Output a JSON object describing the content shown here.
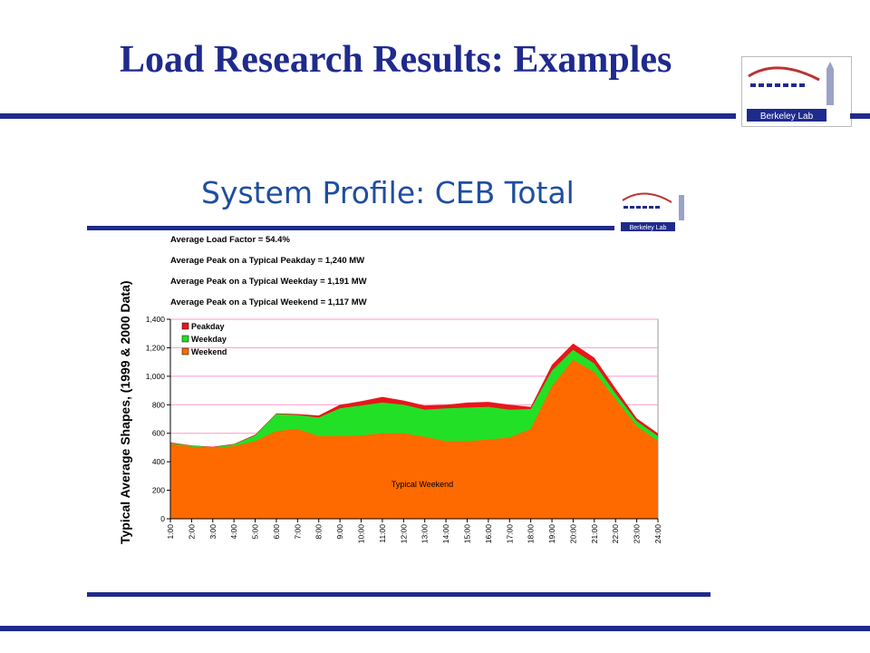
{
  "slide": {
    "title": "Load Research Results: Examples",
    "logo_text": "Berkeley Lab"
  },
  "chart_header": {
    "title": "System Profile: CEB Total"
  },
  "stats": [
    "Average Load Factor = 54.4%",
    "Average Peak on a Typical Peakday =  1,240 MW",
    "Average Peak on a Typical Weekday = 1,191 MW",
    "Average Peak on a Typical Weekend = 1,117 MW"
  ],
  "colors": {
    "brand": "#1f2a8c",
    "peakday": "#e8161b",
    "weekday": "#22e026",
    "weekend": "#ff6a00",
    "gridline": "#ff99cc"
  },
  "chart_data": {
    "type": "area",
    "ylabel": "Typical Average Shapes, (1999 & 2000 Data)",
    "xlabel": "",
    "ylim": [
      0,
      1400
    ],
    "yticks": [
      0,
      200,
      400,
      600,
      800,
      1000,
      1200,
      1400
    ],
    "ytick_labels": [
      "0",
      "200",
      "400",
      "600",
      "800",
      "1,000",
      "1,200",
      "1,400"
    ],
    "grid": true,
    "legend_position": "top-left",
    "annotation": "Typical Weekend",
    "x": [
      "1:00",
      "2:00",
      "3:00",
      "4:00",
      "5:00",
      "6:00",
      "7:00",
      "8:00",
      "9:00",
      "10:00",
      "11:00",
      "12:00",
      "13:00",
      "14:00",
      "15:00",
      "16:00",
      "17:00",
      "18:00",
      "19:00",
      "20:00",
      "21:00",
      "22:00",
      "23:00",
      "24:00"
    ],
    "series": [
      {
        "name": "Peakday",
        "values": [
          535,
          515,
          505,
          525,
          590,
          740,
          735,
          725,
          800,
          825,
          855,
          830,
          795,
          800,
          815,
          820,
          800,
          785,
          1080,
          1230,
          1130,
          915,
          705,
          600
        ]
      },
      {
        "name": "Weekday",
        "values": [
          530,
          512,
          500,
          522,
          585,
          735,
          728,
          710,
          775,
          795,
          815,
          800,
          765,
          775,
          780,
          785,
          765,
          770,
          1040,
          1185,
          1090,
          880,
          685,
          580
        ]
      },
      {
        "name": "Weekend",
        "values": [
          525,
          505,
          495,
          510,
          545,
          615,
          630,
          580,
          580,
          585,
          600,
          600,
          575,
          545,
          545,
          555,
          570,
          630,
          930,
          1115,
          1030,
          840,
          650,
          545
        ]
      }
    ]
  }
}
